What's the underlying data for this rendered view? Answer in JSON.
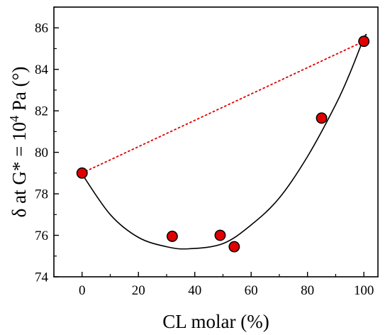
{
  "chart_data": {
    "type": "scatter",
    "xlabel": "CL molar (%)",
    "ylabel": {
      "prefix": "δ at G* = 10",
      "superscript": "4",
      "suffix": " Pa (°)"
    },
    "xlim": [
      -10,
      105
    ],
    "ylim": [
      74,
      87
    ],
    "x_ticks": [
      0,
      20,
      40,
      60,
      80,
      100
    ],
    "y_ticks": [
      74,
      76,
      78,
      80,
      82,
      84,
      86
    ],
    "x_tick_labels": [
      "0",
      "20",
      "40",
      "60",
      "80",
      "100"
    ],
    "y_tick_labels": [
      "74",
      "76",
      "78",
      "80",
      "82",
      "84",
      "86"
    ],
    "grid": false,
    "series": [
      {
        "kind": "markers",
        "color": "#e00000",
        "points": [
          {
            "x": 0,
            "y": 79.0
          },
          {
            "x": 32,
            "y": 75.95
          },
          {
            "x": 49,
            "y": 76.0
          },
          {
            "x": 54,
            "y": 75.45
          },
          {
            "x": 85,
            "y": 81.65
          },
          {
            "x": 100,
            "y": 85.35
          }
        ]
      },
      {
        "kind": "dotted-line",
        "color": "#e00000",
        "points": [
          {
            "x": 0,
            "y": 79.0
          },
          {
            "x": 100,
            "y": 85.35
          }
        ]
      },
      {
        "kind": "fit-curve",
        "color": "#000000",
        "points": [
          {
            "x": 0,
            "y": 78.95
          },
          {
            "x": 10,
            "y": 77.0
          },
          {
            "x": 20,
            "y": 75.9
          },
          {
            "x": 30,
            "y": 75.45
          },
          {
            "x": 38,
            "y": 75.35
          },
          {
            "x": 50,
            "y": 75.6
          },
          {
            "x": 60,
            "y": 76.5
          },
          {
            "x": 70,
            "y": 77.8
          },
          {
            "x": 80,
            "y": 79.8
          },
          {
            "x": 90,
            "y": 82.3
          },
          {
            "x": 95,
            "y": 83.8
          },
          {
            "x": 100,
            "y": 85.5
          },
          {
            "x": 101,
            "y": 85.65
          }
        ]
      }
    ]
  }
}
